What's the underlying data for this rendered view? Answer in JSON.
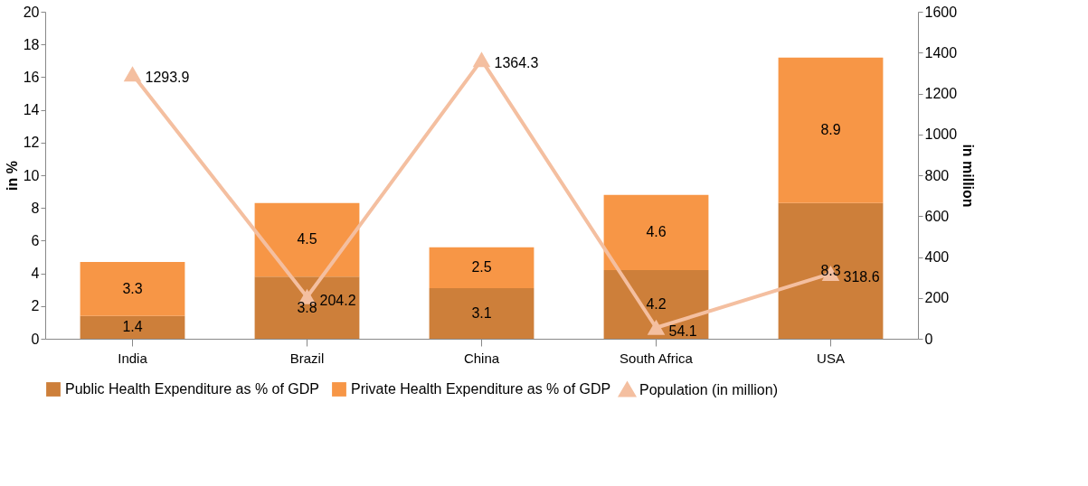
{
  "chart_data": {
    "type": "bar",
    "stacked": true,
    "ylabel": "in %",
    "y2label": "in million",
    "categories": [
      "India",
      "Brazil",
      "China",
      "South Africa",
      "USA"
    ],
    "series": [
      {
        "name": "Public Health Expenditure as % of GDP",
        "color": "#cd7f3a",
        "values": [
          1.4,
          3.8,
          3.1,
          4.2,
          8.3
        ]
      },
      {
        "name": "Private Health Expenditure as % of GDP",
        "color": "#f79646",
        "values": [
          3.3,
          4.5,
          2.5,
          4.6,
          8.9
        ]
      },
      {
        "name": "Population (in million)",
        "type": "line",
        "axis": "y2",
        "marker": "triangle",
        "line_style": "solid",
        "color": "#f4bfa0",
        "values": [
          1293.9,
          204.2,
          1364.3,
          54.1,
          318.6
        ]
      }
    ],
    "ylim": [
      0,
      20
    ],
    "yticks": [
      0,
      2,
      4,
      6,
      8,
      10,
      12,
      14,
      16,
      18,
      20
    ],
    "y2lim": [
      0,
      1600
    ],
    "y2ticks": [
      0,
      200,
      400,
      600,
      800,
      1000,
      1200,
      1400,
      1600
    ],
    "data_labels": true,
    "grid": false,
    "legend": "bottom"
  }
}
